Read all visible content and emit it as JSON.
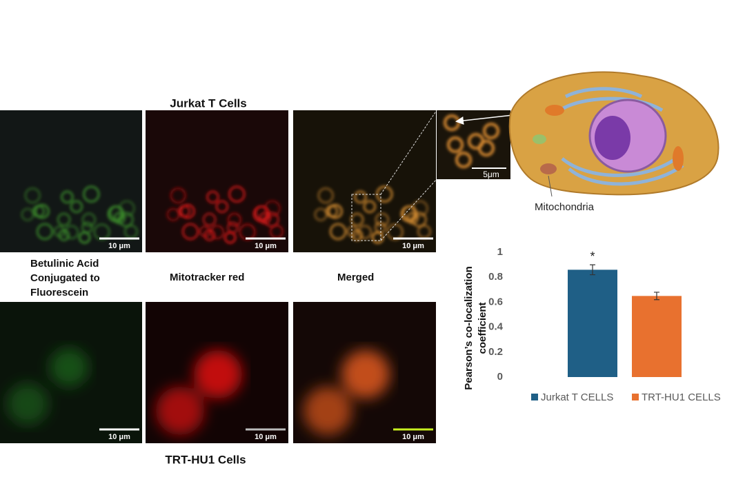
{
  "figure": {
    "top_title": "Jurkat T Cells",
    "bottom_title": "TRT-HU1 Cells",
    "column_labels": [
      "Betulinic Acid Conjugated to Fluorescein",
      "Mitotracker red",
      "Merged"
    ],
    "scale_bar_labels": [
      "10 μm",
      "10 μm",
      "10 μm",
      "10 μm",
      "10 μm",
      "10 μm"
    ],
    "inset_scale_label": "5μm",
    "organelle_label": "Mitochondria"
  },
  "chart_data": {
    "type": "bar",
    "ylabel": "Pearson’s co-localization coefficient",
    "ylim": [
      0,
      1
    ],
    "yticks": [
      0,
      0.2,
      0.4,
      0.6,
      0.8,
      1
    ],
    "annotation": "*",
    "series": [
      {
        "name": "Jurkat T CELLS",
        "color": "#1f5f86",
        "values": [
          0.86
        ],
        "errors": [
          0.04
        ]
      },
      {
        "name": "TRT-HU1 CELLS",
        "color": "#e8712f",
        "values": [
          0.65
        ],
        "errors": [
          0.03
        ]
      }
    ]
  }
}
